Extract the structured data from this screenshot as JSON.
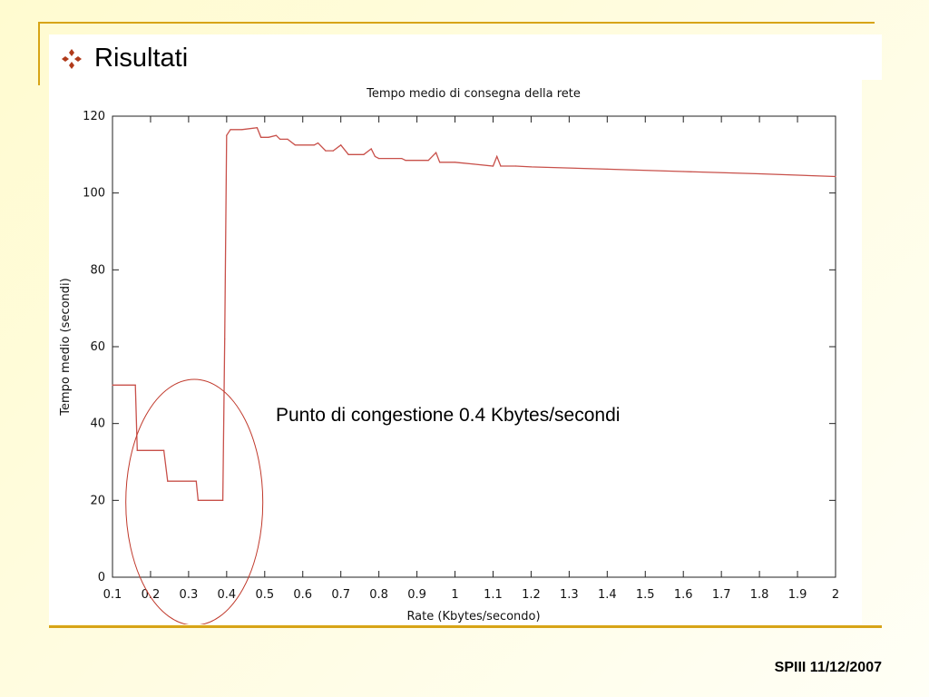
{
  "slide": {
    "title": "Risultati",
    "footer": "SPIII 11/12/2007"
  },
  "colors": {
    "accent_rule": "#d7a417",
    "bullet": "#b03a1a",
    "series_line": "#c8504a",
    "highlight_circle": "#c0392b"
  },
  "icons": {
    "bullet": "diamond-bullet-icon"
  },
  "chart_data": {
    "type": "line",
    "title": "Tempo medio di consegna della rete",
    "xlabel": "Rate (Kbytes/secondo)",
    "ylabel": "Tempo medio (secondi)",
    "xlim": [
      0.1,
      2
    ],
    "ylim": [
      0,
      120
    ],
    "x_ticks": [
      0.1,
      0.2,
      0.3,
      0.4,
      0.5,
      0.6,
      0.7,
      0.8,
      0.9,
      1,
      1.1,
      1.2,
      1.3,
      1.4,
      1.5,
      1.6,
      1.7,
      1.8,
      1.9,
      2
    ],
    "y_ticks": [
      0,
      20,
      40,
      60,
      80,
      100,
      120
    ],
    "grid": false,
    "series": [
      {
        "x": [
          0.1,
          0.16,
          0.165,
          0.235,
          0.245,
          0.32,
          0.325,
          0.39,
          0.395,
          0.4,
          0.41,
          0.44,
          0.48,
          0.49,
          0.51,
          0.53,
          0.54,
          0.56,
          0.58,
          0.63,
          0.64,
          0.66,
          0.68,
          0.7,
          0.72,
          0.76,
          0.78,
          0.79,
          0.8,
          0.86,
          0.87,
          0.93,
          0.95,
          0.96,
          1.0,
          1.05,
          1.1,
          1.11,
          1.12,
          1.16,
          1.2,
          1.4,
          1.6,
          1.8,
          2.0
        ],
        "y": [
          50,
          50,
          33,
          33,
          25,
          25,
          20,
          20,
          62,
          115,
          116.5,
          116.5,
          117,
          114.5,
          114.5,
          115,
          114,
          114,
          112.5,
          112.5,
          113,
          111,
          111,
          112.5,
          110,
          110,
          111.5,
          109.5,
          109,
          109,
          108.5,
          108.5,
          110.5,
          108,
          108,
          107.5,
          107,
          109.5,
          107,
          107,
          106.8,
          106.2,
          105.6,
          105,
          104.3
        ]
      }
    ],
    "annotation": "Punto di congestione 0.4 Kbytes/secondi",
    "highlight": {
      "cx": 0.315,
      "cy": 19.5,
      "rx": 0.18,
      "ry": 32
    }
  }
}
